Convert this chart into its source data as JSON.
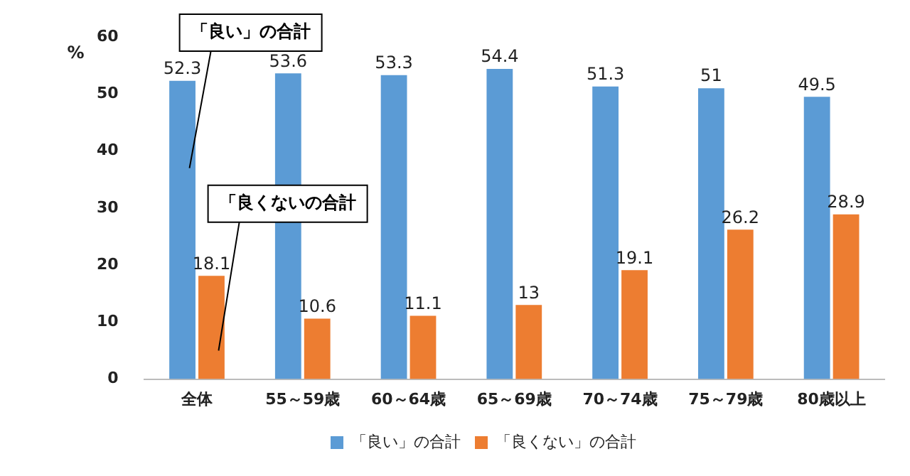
{
  "chart_data": {
    "type": "bar",
    "ylabel": "%",
    "categories": [
      "全体",
      "55～59歳",
      "60～64歳",
      "65～69歳",
      "70～74歳",
      "75～79歳",
      "80歳以上"
    ],
    "series": [
      {
        "name": "「良い」の合計",
        "color": "#5b9bd5",
        "values": [
          52.3,
          53.6,
          53.3,
          54.4,
          51.3,
          51,
          49.5
        ]
      },
      {
        "name": "「良くない」の合計",
        "color": "#ed7d31",
        "values": [
          18.1,
          10.6,
          11.1,
          13,
          19.1,
          26.2,
          28.9
        ]
      }
    ],
    "ylim": [
      0,
      60
    ],
    "yticks": [
      0,
      10,
      20,
      30,
      40,
      50,
      60
    ],
    "grid": false,
    "legend": "bottom",
    "data_labels": true,
    "annotations": [
      "「良い」の合計",
      "「良くないの合計"
    ]
  }
}
